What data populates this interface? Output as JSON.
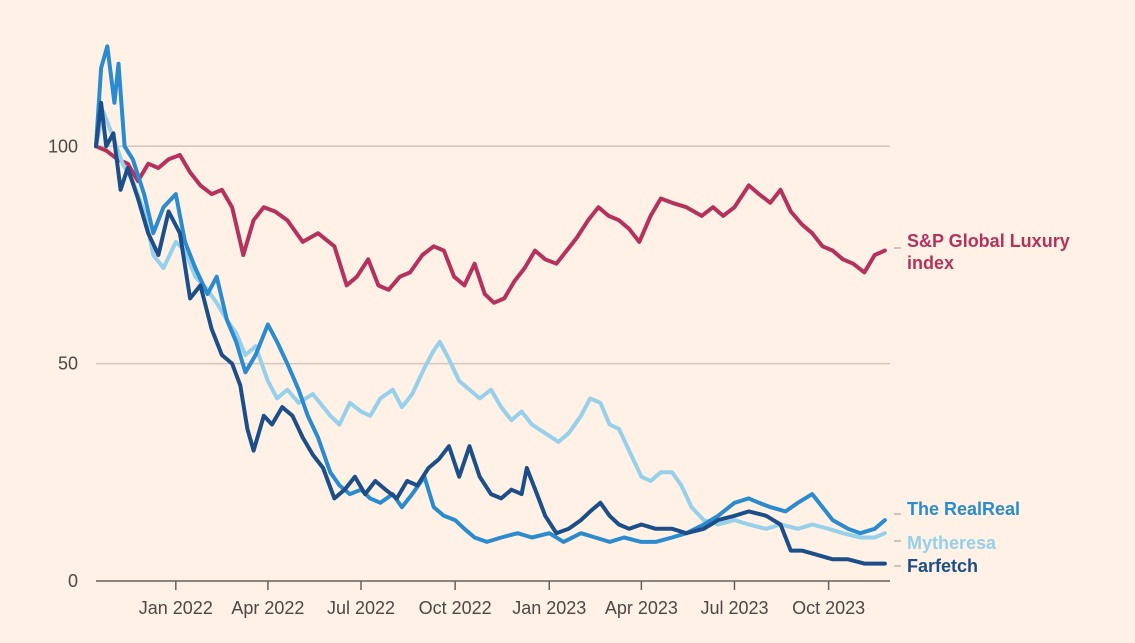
{
  "chart_data": {
    "type": "line",
    "title": "",
    "xlabel": "",
    "ylabel": "",
    "ylim": [
      0,
      120
    ],
    "grid": true,
    "y_ticks": [
      "0",
      "50",
      "100"
    ],
    "x_ticks": [
      "Jan 2022",
      "Apr 2022",
      "Jul 2022",
      "Oct 2022",
      "Jan 2023",
      "Apr 2023",
      "Jul 2023",
      "Oct 2023"
    ],
    "x_start": "2021-10-15",
    "x_end": "2023-11-30",
    "series": [
      {
        "name": "S&P Global Luxury index",
        "color": "#b5325d",
        "points": [
          [
            "2021-10-15",
            100
          ],
          [
            "2021-10-25",
            99
          ],
          [
            "2021-11-05",
            97
          ],
          [
            "2021-11-15",
            96
          ],
          [
            "2021-11-25",
            92
          ],
          [
            "2021-12-05",
            96
          ],
          [
            "2021-12-15",
            95
          ],
          [
            "2021-12-25",
            97
          ],
          [
            "2022-01-05",
            98
          ],
          [
            "2022-01-15",
            94
          ],
          [
            "2022-01-25",
            91
          ],
          [
            "2022-02-05",
            89
          ],
          [
            "2022-02-15",
            90
          ],
          [
            "2022-02-25",
            86
          ],
          [
            "2022-03-08",
            75
          ],
          [
            "2022-03-18",
            83
          ],
          [
            "2022-03-28",
            86
          ],
          [
            "2022-04-08",
            85
          ],
          [
            "2022-04-20",
            83
          ],
          [
            "2022-05-05",
            78
          ],
          [
            "2022-05-20",
            80
          ],
          [
            "2022-06-05",
            77
          ],
          [
            "2022-06-17",
            68
          ],
          [
            "2022-06-27",
            70
          ],
          [
            "2022-07-08",
            74
          ],
          [
            "2022-07-18",
            68
          ],
          [
            "2022-07-28",
            67
          ],
          [
            "2022-08-08",
            70
          ],
          [
            "2022-08-18",
            71
          ],
          [
            "2022-08-30",
            75
          ],
          [
            "2022-09-10",
            77
          ],
          [
            "2022-09-20",
            76
          ],
          [
            "2022-09-30",
            70
          ],
          [
            "2022-10-10",
            68
          ],
          [
            "2022-10-20",
            73
          ],
          [
            "2022-10-30",
            66
          ],
          [
            "2022-11-08",
            64
          ],
          [
            "2022-11-18",
            65
          ],
          [
            "2022-11-28",
            69
          ],
          [
            "2022-12-08",
            72
          ],
          [
            "2022-12-18",
            76
          ],
          [
            "2022-12-28",
            74
          ],
          [
            "2023-01-08",
            73
          ],
          [
            "2023-01-18",
            76
          ],
          [
            "2023-01-28",
            79
          ],
          [
            "2023-02-08",
            83
          ],
          [
            "2023-02-18",
            86
          ],
          [
            "2023-02-28",
            84
          ],
          [
            "2023-03-10",
            83
          ],
          [
            "2023-03-20",
            81
          ],
          [
            "2023-03-30",
            78
          ],
          [
            "2023-04-10",
            84
          ],
          [
            "2023-04-20",
            88
          ],
          [
            "2023-05-01",
            87
          ],
          [
            "2023-05-15",
            86
          ],
          [
            "2023-05-30",
            84
          ],
          [
            "2023-06-10",
            86
          ],
          [
            "2023-06-20",
            84
          ],
          [
            "2023-07-01",
            86
          ],
          [
            "2023-07-15",
            91
          ],
          [
            "2023-07-25",
            89
          ],
          [
            "2023-08-05",
            87
          ],
          [
            "2023-08-15",
            90
          ],
          [
            "2023-08-25",
            85
          ],
          [
            "2023-09-05",
            82
          ],
          [
            "2023-09-15",
            80
          ],
          [
            "2023-09-25",
            77
          ],
          [
            "2023-10-05",
            76
          ],
          [
            "2023-10-15",
            74
          ],
          [
            "2023-10-25",
            73
          ],
          [
            "2023-11-05",
            71
          ],
          [
            "2023-11-15",
            75
          ],
          [
            "2023-11-25",
            76
          ]
        ]
      },
      {
        "name": "The RealReal",
        "color": "#2a8bcf",
        "points": [
          [
            "2021-10-15",
            100
          ],
          [
            "2021-10-20",
            118
          ],
          [
            "2021-10-26",
            123
          ],
          [
            "2021-11-02",
            110
          ],
          [
            "2021-11-06",
            119
          ],
          [
            "2021-11-12",
            100
          ],
          [
            "2021-11-20",
            97
          ],
          [
            "2021-12-01",
            89
          ],
          [
            "2021-12-10",
            80
          ],
          [
            "2021-12-20",
            86
          ],
          [
            "2022-01-01",
            89
          ],
          [
            "2022-01-10",
            78
          ],
          [
            "2022-01-20",
            72
          ],
          [
            "2022-02-01",
            66
          ],
          [
            "2022-02-10",
            70
          ],
          [
            "2022-02-20",
            60
          ],
          [
            "2022-03-01",
            55
          ],
          [
            "2022-03-10",
            48
          ],
          [
            "2022-03-20",
            52
          ],
          [
            "2022-04-01",
            59
          ],
          [
            "2022-04-10",
            55
          ],
          [
            "2022-04-20",
            50
          ],
          [
            "2022-05-01",
            44
          ],
          [
            "2022-05-10",
            38
          ],
          [
            "2022-05-20",
            33
          ],
          [
            "2022-06-01",
            25
          ],
          [
            "2022-06-10",
            22
          ],
          [
            "2022-06-20",
            20
          ],
          [
            "2022-07-01",
            21
          ],
          [
            "2022-07-10",
            19
          ],
          [
            "2022-07-20",
            18
          ],
          [
            "2022-08-01",
            20
          ],
          [
            "2022-08-10",
            17
          ],
          [
            "2022-08-20",
            20
          ],
          [
            "2022-09-01",
            24
          ],
          [
            "2022-09-10",
            17
          ],
          [
            "2022-09-20",
            15
          ],
          [
            "2022-10-01",
            14
          ],
          [
            "2022-10-10",
            12
          ],
          [
            "2022-10-20",
            10
          ],
          [
            "2022-11-01",
            9
          ],
          [
            "2022-11-15",
            10
          ],
          [
            "2022-12-01",
            11
          ],
          [
            "2022-12-15",
            10
          ],
          [
            "2023-01-01",
            11
          ],
          [
            "2023-01-15",
            9
          ],
          [
            "2023-02-01",
            11
          ],
          [
            "2023-02-15",
            10
          ],
          [
            "2023-03-01",
            9
          ],
          [
            "2023-03-15",
            10
          ],
          [
            "2023-04-01",
            9
          ],
          [
            "2023-04-15",
            9
          ],
          [
            "2023-05-01",
            10
          ],
          [
            "2023-05-15",
            11
          ],
          [
            "2023-06-01",
            13
          ],
          [
            "2023-06-15",
            15
          ],
          [
            "2023-07-01",
            18
          ],
          [
            "2023-07-15",
            19
          ],
          [
            "2023-07-25",
            18
          ],
          [
            "2023-08-05",
            17
          ],
          [
            "2023-08-20",
            16
          ],
          [
            "2023-09-01",
            18
          ],
          [
            "2023-09-15",
            20
          ],
          [
            "2023-09-25",
            17
          ],
          [
            "2023-10-05",
            14
          ],
          [
            "2023-10-20",
            12
          ],
          [
            "2023-11-01",
            11
          ],
          [
            "2023-11-15",
            12
          ],
          [
            "2023-11-25",
            14
          ]
        ]
      },
      {
        "name": "Mytheresa",
        "color": "#96d0ea",
        "points": [
          [
            "2021-10-15",
            100
          ],
          [
            "2021-10-22",
            108
          ],
          [
            "2021-11-01",
            102
          ],
          [
            "2021-11-10",
            96
          ],
          [
            "2021-11-20",
            92
          ],
          [
            "2021-12-01",
            85
          ],
          [
            "2021-12-10",
            75
          ],
          [
            "2021-12-20",
            72
          ],
          [
            "2022-01-01",
            78
          ],
          [
            "2022-01-10",
            76
          ],
          [
            "2022-01-20",
            70
          ],
          [
            "2022-02-01",
            67
          ],
          [
            "2022-02-10",
            64
          ],
          [
            "2022-02-20",
            60
          ],
          [
            "2022-03-01",
            57
          ],
          [
            "2022-03-10",
            52
          ],
          [
            "2022-03-20",
            54
          ],
          [
            "2022-04-01",
            46
          ],
          [
            "2022-04-10",
            42
          ],
          [
            "2022-04-20",
            44
          ],
          [
            "2022-05-01",
            41
          ],
          [
            "2022-05-15",
            43
          ],
          [
            "2022-06-01",
            38
          ],
          [
            "2022-06-10",
            36
          ],
          [
            "2022-06-20",
            41
          ],
          [
            "2022-07-01",
            39
          ],
          [
            "2022-07-10",
            38
          ],
          [
            "2022-07-20",
            42
          ],
          [
            "2022-08-01",
            44
          ],
          [
            "2022-08-10",
            40
          ],
          [
            "2022-08-20",
            43
          ],
          [
            "2022-09-01",
            49
          ],
          [
            "2022-09-10",
            53
          ],
          [
            "2022-09-16",
            55
          ],
          [
            "2022-09-25",
            51
          ],
          [
            "2022-10-05",
            46
          ],
          [
            "2022-10-15",
            44
          ],
          [
            "2022-10-25",
            42
          ],
          [
            "2022-11-05",
            44
          ],
          [
            "2022-11-15",
            40
          ],
          [
            "2022-11-25",
            37
          ],
          [
            "2022-12-05",
            39
          ],
          [
            "2022-12-15",
            36
          ],
          [
            "2022-12-28",
            34
          ],
          [
            "2023-01-10",
            32
          ],
          [
            "2023-01-20",
            34
          ],
          [
            "2023-02-01",
            38
          ],
          [
            "2023-02-10",
            42
          ],
          [
            "2023-02-20",
            41
          ],
          [
            "2023-03-01",
            36
          ],
          [
            "2023-03-10",
            35
          ],
          [
            "2023-03-20",
            30
          ],
          [
            "2023-04-01",
            24
          ],
          [
            "2023-04-10",
            23
          ],
          [
            "2023-04-20",
            25
          ],
          [
            "2023-05-01",
            25
          ],
          [
            "2023-05-10",
            22
          ],
          [
            "2023-05-20",
            17
          ],
          [
            "2023-06-01",
            14
          ],
          [
            "2023-06-15",
            13
          ],
          [
            "2023-07-01",
            14
          ],
          [
            "2023-07-15",
            13
          ],
          [
            "2023-08-01",
            12
          ],
          [
            "2023-08-15",
            13
          ],
          [
            "2023-09-01",
            12
          ],
          [
            "2023-09-15",
            13
          ],
          [
            "2023-10-01",
            12
          ],
          [
            "2023-10-15",
            11
          ],
          [
            "2023-11-01",
            10
          ],
          [
            "2023-11-15",
            10
          ],
          [
            "2023-11-25",
            11
          ]
        ]
      },
      {
        "name": "Farfetch",
        "color": "#1c4f8a",
        "points": [
          [
            "2021-10-15",
            100
          ],
          [
            "2021-10-20",
            110
          ],
          [
            "2021-10-25",
            100
          ],
          [
            "2021-11-01",
            103
          ],
          [
            "2021-11-08",
            90
          ],
          [
            "2021-11-15",
            95
          ],
          [
            "2021-11-25",
            88
          ],
          [
            "2021-12-05",
            80
          ],
          [
            "2021-12-15",
            75
          ],
          [
            "2021-12-25",
            85
          ],
          [
            "2022-01-05",
            80
          ],
          [
            "2022-01-15",
            65
          ],
          [
            "2022-01-25",
            68
          ],
          [
            "2022-02-05",
            58
          ],
          [
            "2022-02-15",
            52
          ],
          [
            "2022-02-25",
            50
          ],
          [
            "2022-03-05",
            45
          ],
          [
            "2022-03-12",
            35
          ],
          [
            "2022-03-18",
            30
          ],
          [
            "2022-03-28",
            38
          ],
          [
            "2022-04-05",
            36
          ],
          [
            "2022-04-15",
            40
          ],
          [
            "2022-04-25",
            38
          ],
          [
            "2022-05-05",
            33
          ],
          [
            "2022-05-15",
            29
          ],
          [
            "2022-05-25",
            26
          ],
          [
            "2022-06-05",
            19
          ],
          [
            "2022-06-15",
            21
          ],
          [
            "2022-06-25",
            24
          ],
          [
            "2022-07-05",
            20
          ],
          [
            "2022-07-15",
            23
          ],
          [
            "2022-07-25",
            21
          ],
          [
            "2022-08-05",
            19
          ],
          [
            "2022-08-15",
            23
          ],
          [
            "2022-08-25",
            22
          ],
          [
            "2022-09-05",
            26
          ],
          [
            "2022-09-15",
            28
          ],
          [
            "2022-09-25",
            31
          ],
          [
            "2022-10-05",
            24
          ],
          [
            "2022-10-15",
            31
          ],
          [
            "2022-10-25",
            24
          ],
          [
            "2022-11-05",
            20
          ],
          [
            "2022-11-15",
            19
          ],
          [
            "2022-11-25",
            21
          ],
          [
            "2022-12-05",
            20
          ],
          [
            "2022-12-10",
            26
          ],
          [
            "2022-12-20",
            20
          ],
          [
            "2022-12-28",
            15
          ],
          [
            "2023-01-08",
            11
          ],
          [
            "2023-01-20",
            12
          ],
          [
            "2023-02-01",
            14
          ],
          [
            "2023-02-10",
            16
          ],
          [
            "2023-02-20",
            18
          ],
          [
            "2023-03-01",
            15
          ],
          [
            "2023-03-10",
            13
          ],
          [
            "2023-03-20",
            12
          ],
          [
            "2023-04-01",
            13
          ],
          [
            "2023-04-15",
            12
          ],
          [
            "2023-05-01",
            12
          ],
          [
            "2023-05-15",
            11
          ],
          [
            "2023-06-01",
            12
          ],
          [
            "2023-06-15",
            14
          ],
          [
            "2023-07-01",
            15
          ],
          [
            "2023-07-15",
            16
          ],
          [
            "2023-08-01",
            15
          ],
          [
            "2023-08-15",
            13
          ],
          [
            "2023-08-25",
            7
          ],
          [
            "2023-09-05",
            7
          ],
          [
            "2023-09-20",
            6
          ],
          [
            "2023-10-05",
            5
          ],
          [
            "2023-10-20",
            5
          ],
          [
            "2023-11-05",
            4
          ],
          [
            "2023-11-15",
            4
          ],
          [
            "2023-11-25",
            4
          ]
        ]
      }
    ]
  }
}
